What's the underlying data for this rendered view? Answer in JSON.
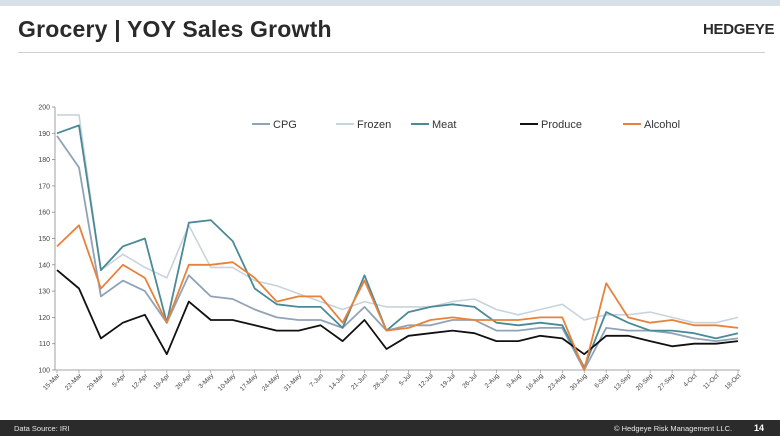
{
  "slide": {
    "title": "Grocery | YOY Sales Growth",
    "logo": "HEDGEYE",
    "source": "Data Source: IRI",
    "copyright": "© Hedgeye Risk Management LLC.",
    "page_number": "14"
  },
  "chart_data": {
    "type": "line",
    "title": "Grocery | YOY Sales Growth",
    "xlabel": "",
    "ylabel": "",
    "ylim": [
      100,
      200
    ],
    "yticks": [
      100,
      110,
      120,
      130,
      140,
      150,
      160,
      170,
      180,
      190,
      200
    ],
    "grid": false,
    "legend_position": "top",
    "categories": [
      "15-Mar",
      "22-Mar",
      "29-Mar",
      "5-Apr",
      "12-Apr",
      "19-Apr",
      "26-Apr",
      "3-May",
      "10-May",
      "17-May",
      "24-May",
      "31-May",
      "7-Jun",
      "14-Jun",
      "21-Jun",
      "28-Jun",
      "5-Jul",
      "12-Jul",
      "19-Jul",
      "26-Jul",
      "2-Aug",
      "9-Aug",
      "16-Aug",
      "23-Aug",
      "30-Aug",
      "6-Sep",
      "13-Sep",
      "20-Sep",
      "27-Sep",
      "4-Oct",
      "11-Oct",
      "18-Oct"
    ],
    "series": [
      {
        "name": "CPG",
        "color": "#8fa3b8",
        "values": [
          189,
          177,
          128,
          134,
          130,
          118,
          136,
          128,
          127,
          123,
          120,
          119,
          119,
          116,
          124,
          115,
          117,
          117,
          119,
          119,
          115,
          115,
          116,
          116,
          100,
          116,
          115,
          115,
          114,
          112,
          111,
          112
        ]
      },
      {
        "name": "Frozen",
        "color": "#c8d4dc",
        "values": [
          197,
          197,
          138,
          144,
          139,
          135,
          155,
          139,
          139,
          134,
          132,
          129,
          126,
          123,
          126,
          124,
          124,
          124,
          126,
          127,
          123,
          121,
          123,
          125,
          119,
          121,
          121,
          122,
          120,
          118,
          118,
          120
        ]
      },
      {
        "name": "Meat",
        "color": "#4a8a96",
        "values": [
          190,
          193,
          138,
          147,
          150,
          118,
          156,
          157,
          149,
          131,
          125,
          124,
          124,
          116,
          136,
          115,
          122,
          124,
          125,
          124,
          118,
          117,
          118,
          117,
          101,
          122,
          118,
          115,
          115,
          114,
          112,
          114
        ]
      },
      {
        "name": "Produce",
        "color": "#111111",
        "values": [
          138,
          131,
          112,
          118,
          121,
          106,
          126,
          119,
          119,
          117,
          115,
          115,
          117,
          111,
          119,
          108,
          113,
          114,
          115,
          114,
          111,
          111,
          113,
          112,
          106,
          113,
          113,
          111,
          109,
          110,
          110,
          111
        ]
      },
      {
        "name": "Alcohol",
        "color": "#e8823a",
        "values": [
          147,
          155,
          131,
          140,
          135,
          118,
          140,
          140,
          141,
          135,
          126,
          128,
          128,
          118,
          134,
          115,
          116,
          119,
          120,
          119,
          119,
          119,
          120,
          120,
          100,
          133,
          120,
          118,
          119,
          117,
          117,
          116
        ]
      }
    ]
  }
}
